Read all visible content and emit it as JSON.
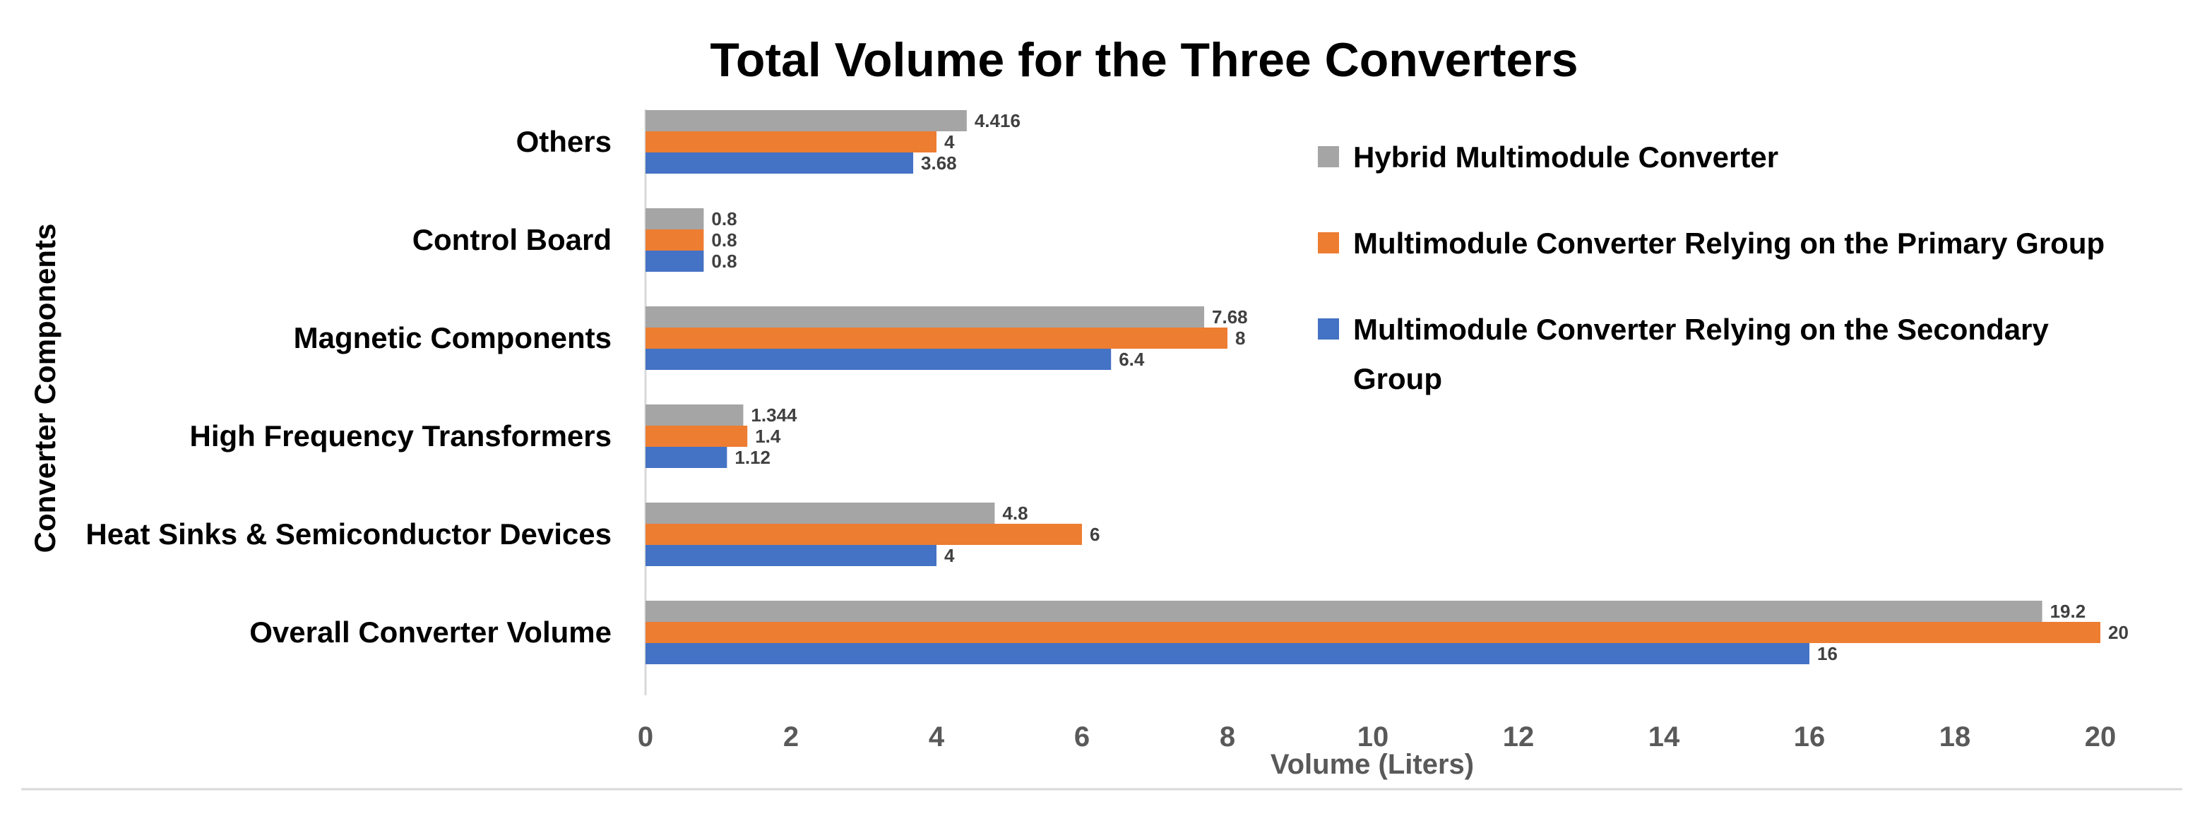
{
  "chart_data": {
    "type": "bar",
    "orientation": "horizontal",
    "title": "Total Volume for the Three Converters",
    "xlabel": "Volume (Liters)",
    "ylabel": "Converter Components",
    "xlim": [
      0,
      20
    ],
    "xticks": [
      0,
      2,
      4,
      6,
      8,
      10,
      12,
      14,
      16,
      18,
      20
    ],
    "categories": [
      "Others",
      "Control Board",
      "Magnetic Components",
      "High Frequency Transformers",
      "Heat Sinks & Semiconductor Devices",
      "Overall Converter Volume"
    ],
    "series": [
      {
        "name": "Hybrid Multimodule Converter",
        "color": "#A5A5A5",
        "values": [
          4.416,
          0.8,
          7.68,
          1.344,
          4.8,
          19.2
        ],
        "labels": [
          "4.416",
          "0.8",
          "7.68",
          "1.344",
          "4.8",
          "19.2"
        ]
      },
      {
        "name": "Multimodule Converter Relying on the Primary Group",
        "color": "#ED7D31",
        "values": [
          4,
          0.8,
          8,
          1.4,
          6,
          20
        ],
        "labels": [
          "4",
          "0.8",
          "8",
          "1.4",
          "6",
          "20"
        ]
      },
      {
        "name": "Multimodule Converter Relying on the Secondary Group",
        "legend_lines": [
          "Multimodule Converter Relying on the Secondary",
          "Group"
        ],
        "color": "#4472C4",
        "values": [
          3.68,
          0.8,
          6.4,
          1.12,
          4,
          16
        ],
        "labels": [
          "3.68",
          "0.8",
          "6.4",
          "1.12",
          "4",
          "16"
        ]
      }
    ],
    "legend_position": "right",
    "grid": false
  }
}
